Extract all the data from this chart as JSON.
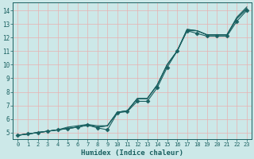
{
  "xlabel": "Humidex (Indice chaleur)",
  "bg_color": "#cce8e8",
  "grid_color": "#e8b0b0",
  "line_color": "#1a6060",
  "xlim": [
    -0.5,
    23.5
  ],
  "ylim": [
    4.5,
    14.6
  ],
  "xticks": [
    0,
    1,
    2,
    3,
    4,
    5,
    6,
    7,
    8,
    9,
    10,
    11,
    12,
    13,
    14,
    15,
    16,
    17,
    18,
    19,
    20,
    21,
    22,
    23
  ],
  "yticks": [
    5,
    6,
    7,
    8,
    9,
    10,
    11,
    12,
    13,
    14
  ],
  "series": [
    [
      4.8,
      4.9,
      5.0,
      5.1,
      5.2,
      5.3,
      5.4,
      5.55,
      5.4,
      5.5,
      6.5,
      6.6,
      7.5,
      7.5,
      8.5,
      10.0,
      11.0,
      12.6,
      12.5,
      12.2,
      12.2,
      12.2,
      13.4,
      14.15
    ],
    [
      4.8,
      4.9,
      5.0,
      5.1,
      5.2,
      5.3,
      5.4,
      5.55,
      5.4,
      5.5,
      6.5,
      6.6,
      7.5,
      7.5,
      8.5,
      10.0,
      11.0,
      12.6,
      12.5,
      12.2,
      12.2,
      12.2,
      13.4,
      14.1
    ],
    [
      4.8,
      4.9,
      5.0,
      5.1,
      5.2,
      5.3,
      5.4,
      5.55,
      5.35,
      5.2,
      6.45,
      6.55,
      7.3,
      7.3,
      8.3,
      9.8,
      11.0,
      12.5,
      12.3,
      12.1,
      12.1,
      12.1,
      13.2,
      14.0
    ],
    [
      4.8,
      4.9,
      5.0,
      5.1,
      5.2,
      5.4,
      5.5,
      5.6,
      5.5,
      5.5,
      6.5,
      6.6,
      7.5,
      7.5,
      8.5,
      10.0,
      11.0,
      12.5,
      12.5,
      12.2,
      12.2,
      12.2,
      13.5,
      14.25
    ]
  ],
  "marker_series": 2,
  "marker": "D",
  "marker_size": 2.5
}
